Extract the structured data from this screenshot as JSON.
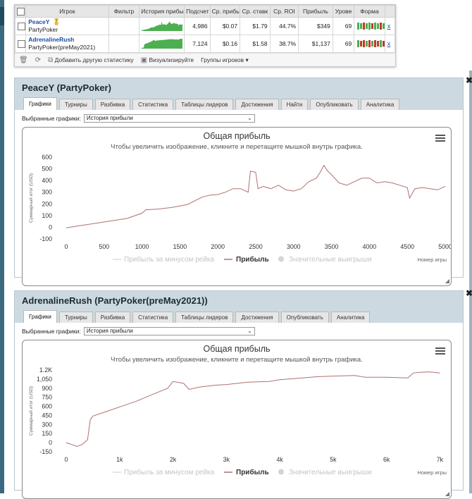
{
  "players_table": {
    "headers": [
      "Игрок",
      "Фильтр",
      "История прибыль",
      "Подсчет",
      "Ср. прибы",
      "Ср. ставк",
      "Ср. ROI",
      "Прибыль",
      "Урове",
      "Форма"
    ],
    "rows": [
      {
        "name": "PeaceY",
        "site": "PartyPoker",
        "count": "4,986",
        "avg_profit": "$0.07",
        "avg_stake": "$1.79",
        "avg_roi": "44.7%",
        "profit": "$349",
        "level": "69",
        "x": "x",
        "form": [
          "#4caf50",
          "#4caf50",
          "#c0392b",
          "#4caf50",
          "#4caf50",
          "#c0392b",
          "#4caf50",
          "#4caf50",
          "#c0392b",
          "#4caf50"
        ]
      },
      {
        "name": "AdrenalineRush",
        "site": "PartyPoker(preMay2021)",
        "count": "7,124",
        "avg_profit": "$0.16",
        "avg_stake": "$1.58",
        "avg_roi": "38.7%",
        "profit": "$1,137",
        "level": "69",
        "x": "x",
        "form": [
          "#4caf50",
          "#c0392b",
          "#c0392b",
          "#4caf50",
          "#c0392b",
          "#4caf50",
          "#c0392b",
          "#c0392b",
          "#4caf50",
          "#c0392b"
        ]
      }
    ],
    "toolbar": {
      "add_stats": "Добавить другую статистику",
      "visualize": "Визуализируйте",
      "groups": "Группы игроков"
    }
  },
  "panels": [
    {
      "title": "PeaceY (PartyPoker)",
      "tabs": [
        "Графики",
        "Турниры",
        "Разбивка",
        "Статистика",
        "Таблицы лидеров",
        "Достижения",
        "Найти",
        "Опубликовать",
        "Аналитика"
      ],
      "select_label": "Выбранные графики:",
      "select_value": "История прибыли"
    },
    {
      "title": "AdrenalineRush (PartyPoker(preMay2021))",
      "tabs": [
        "Графики",
        "Турниры",
        "Разбивка",
        "Статистика",
        "Таблицы лидеров",
        "Достижения",
        "Опубликовать",
        "Аналитика"
      ],
      "select_label": "Выбранные графики:",
      "select_value": "История прибыли"
    }
  ],
  "chart_data": [
    {
      "type": "line",
      "title": "Общая прибыль",
      "subtitle": "Чтобы увеличить изображение, кликните и перетащите мышкой внутрь графика.",
      "xlabel": "Номер игры",
      "ylabel": "Суммарный итог (USD)",
      "xlim": [
        0,
        5000
      ],
      "ylim": [
        -100,
        600
      ],
      "xticks": [
        "0",
        "500",
        "1000",
        "1500",
        "2000",
        "2500",
        "3000",
        "3500",
        "4000",
        "4500",
        "5000"
      ],
      "yticks": [
        "-100",
        "0",
        "100",
        "200",
        "300",
        "400",
        "500",
        "600"
      ],
      "legend": [
        "Прибыль за минусом рейка",
        "Прибыль",
        "Значительные выигрыши"
      ],
      "series": [
        {
          "name": "Прибыль",
          "x": [
            0,
            200,
            400,
            600,
            800,
            1000,
            1050,
            1200,
            1400,
            1600,
            1800,
            1900,
            2000,
            2100,
            2200,
            2300,
            2400,
            2430,
            2500,
            2530,
            2600,
            2700,
            2800,
            2900,
            3000,
            3100,
            3200,
            3300,
            3350,
            3400,
            3450,
            3500,
            3600,
            3700,
            3800,
            3900,
            4000,
            4100,
            4200,
            4300,
            4400,
            4500,
            4530,
            4600,
            4700,
            4800,
            4900,
            5000
          ],
          "y": [
            -5,
            15,
            35,
            55,
            75,
            120,
            150,
            155,
            170,
            195,
            260,
            275,
            280,
            300,
            330,
            330,
            300,
            480,
            470,
            330,
            350,
            330,
            360,
            320,
            310,
            330,
            390,
            420,
            470,
            530,
            480,
            450,
            380,
            360,
            390,
            420,
            420,
            380,
            390,
            380,
            360,
            340,
            250,
            330,
            340,
            330,
            320,
            350
          ]
        }
      ]
    },
    {
      "type": "line",
      "title": "Общая прибыль",
      "subtitle": "Чтобы увеличить изображение, кликните и перетащите мышкой внутрь графика.",
      "xlabel": "Номер игры",
      "ylabel": "Суммарный итог (USD)",
      "xlim": [
        0,
        7100
      ],
      "ylim": [
        -150,
        1200
      ],
      "xticks": [
        "0",
        "1k",
        "2k",
        "3k",
        "4k",
        "5k",
        "6k",
        "7k"
      ],
      "yticks": [
        "-150",
        "0",
        "150",
        "300",
        "450",
        "600",
        "750",
        "900",
        "1,050",
        "1.2K"
      ],
      "legend": [
        "Прибыль за минусом рейка",
        "Прибыль",
        "Значительные выигрыши"
      ],
      "series": [
        {
          "name": "Прибыль",
          "x": [
            0,
            100,
            200,
            300,
            400,
            450,
            500,
            800,
            1100,
            1300,
            1600,
            1900,
            2000,
            2200,
            2300,
            2500,
            2800,
            3000,
            3400,
            3800,
            4000,
            4300,
            4700,
            5000,
            5400,
            5600,
            6000,
            6400,
            6500,
            6600,
            6800,
            7000
          ],
          "y": [
            0,
            -30,
            -60,
            -30,
            50,
            380,
            440,
            530,
            620,
            680,
            790,
            900,
            1010,
            980,
            880,
            920,
            950,
            960,
            1000,
            1010,
            1040,
            1060,
            1090,
            1100,
            1110,
            1080,
            1080,
            1070,
            1150,
            1160,
            1170,
            1150
          ]
        }
      ]
    }
  ]
}
